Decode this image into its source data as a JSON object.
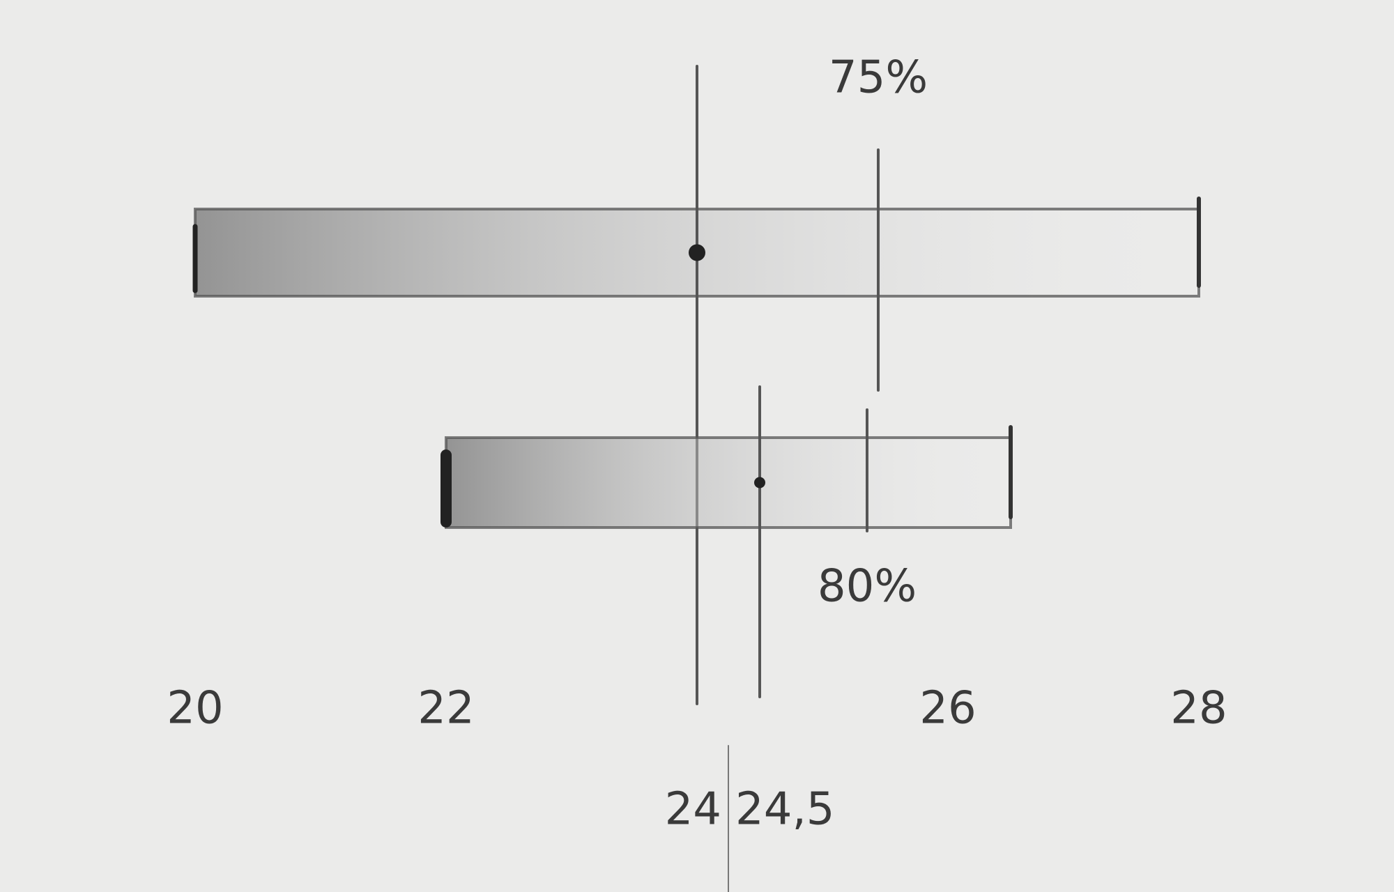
{
  "chart_data": {
    "type": "range",
    "rows": [
      {
        "min": 20,
        "max": 28,
        "marker": 24,
        "threshold": 25.4,
        "threshold_label": "75%"
      },
      {
        "min": 22,
        "max": 26.5,
        "marker": 24.5,
        "threshold": 25.4,
        "threshold_label": "80%"
      }
    ],
    "xlim": [
      19,
      29
    ],
    "xticks": [
      20,
      22,
      24,
      {
        "value": 24.5,
        "label": "24,5"
      },
      26,
      28
    ],
    "color": "#555555"
  }
}
